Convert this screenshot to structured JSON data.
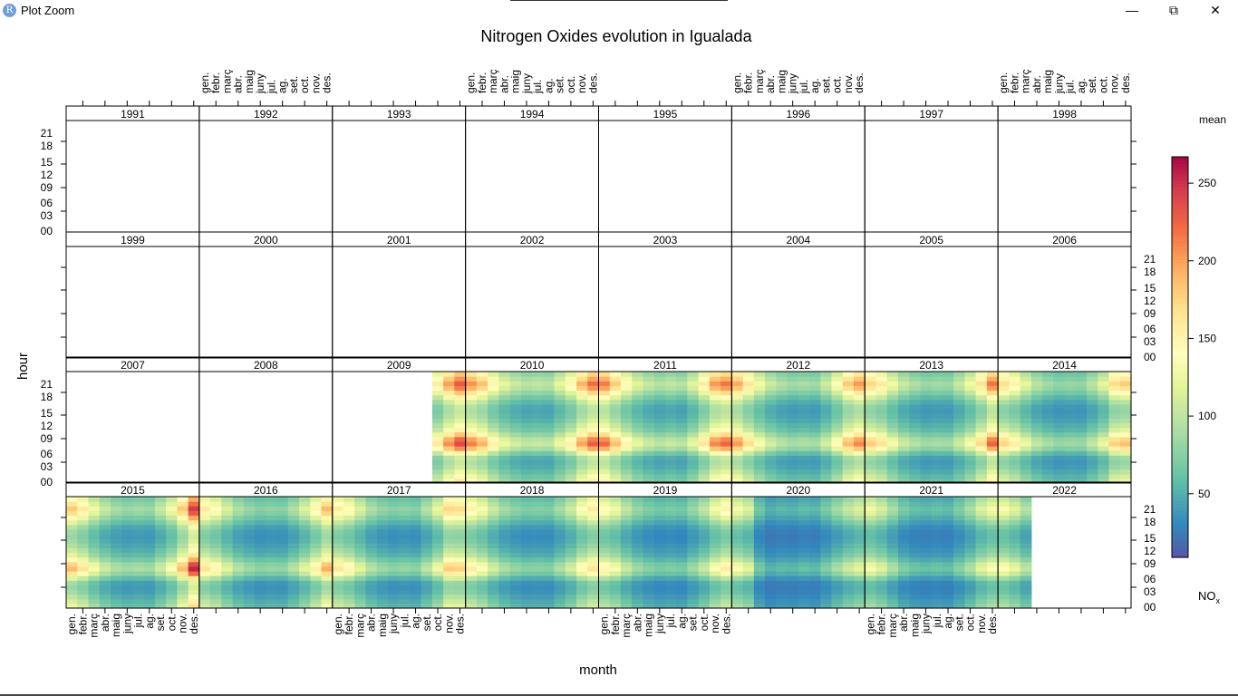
{
  "window": {
    "title": "Plot Zoom",
    "app_icon_letter": "R",
    "minimize": "—",
    "restore": "⧉",
    "close": "✕"
  },
  "chart_data": {
    "type": "heatmap",
    "title": "Nitrogen Oxides evolution in Igualada",
    "xlabel": "month",
    "ylabel": "hour",
    "legend": {
      "title": "mean",
      "label": "NO",
      "label_sub": "x",
      "ticks": [
        50,
        100,
        150,
        200,
        250
      ],
      "range": [
        9,
        267
      ],
      "placement": "right"
    },
    "months": [
      "gen.",
      "febr.",
      "març",
      "abr.",
      "maig",
      "juny",
      "jul.",
      "ag.",
      "set.",
      "oct.",
      "nov.",
      "des."
    ],
    "hour_ticks": [
      "00",
      "03",
      "06",
      "09",
      "12",
      "15",
      "18",
      "21"
    ],
    "years": [
      1991,
      1992,
      1993,
      1994,
      1995,
      1996,
      1997,
      1998,
      1999,
      2000,
      2001,
      2002,
      2003,
      2004,
      2005,
      2006,
      2007,
      2008,
      2009,
      2010,
      2011,
      2012,
      2013,
      2014,
      2015,
      2016,
      2017,
      2018,
      2019,
      2020,
      2021,
      2022
    ],
    "hourly_profile": [
      1.0,
      0.9,
      0.8,
      0.7,
      0.66,
      0.7,
      0.95,
      1.3,
      1.5,
      1.4,
      1.15,
      0.95,
      0.85,
      0.75,
      0.68,
      0.65,
      0.68,
      0.78,
      0.95,
      1.15,
      1.35,
      1.45,
      1.3,
      1.15
    ],
    "monthly_mean": {
      "2009": [
        null,
        null,
        null,
        null,
        null,
        null,
        null,
        null,
        null,
        107,
        138,
        159
      ],
      "2010": [
        142,
        128,
        102,
        84,
        74,
        68,
        70,
        68,
        84,
        102,
        132,
        152
      ],
      "2011": [
        148,
        124,
        100,
        82,
        72,
        66,
        70,
        66,
        82,
        108,
        140,
        150
      ],
      "2012": [
        135,
        112,
        90,
        74,
        65,
        60,
        62,
        60,
        74,
        95,
        125,
        140
      ],
      "2013": [
        120,
        110,
        88,
        72,
        64,
        58,
        60,
        59,
        72,
        88,
        114,
        150
      ],
      "2014": [
        116,
        104,
        84,
        68,
        60,
        55,
        57,
        56,
        68,
        84,
        118,
        124
      ],
      "2015": [
        125,
        110,
        88,
        72,
        62,
        58,
        60,
        58,
        72,
        90,
        125,
        170
      ],
      "2016": [
        110,
        98,
        79,
        64,
        57,
        52,
        54,
        53,
        64,
        80,
        102,
        130
      ],
      "2017": [
        108,
        98,
        80,
        64,
        56,
        52,
        54,
        52,
        66,
        85,
        120,
        118
      ],
      "2018": [
        104,
        92,
        74,
        61,
        54,
        50,
        51,
        50,
        61,
        74,
        96,
        110
      ],
      "2019": [
        98,
        88,
        70,
        57,
        50,
        46,
        48,
        46,
        57,
        70,
        90,
        104
      ],
      "2020": [
        90,
        80,
        45,
        35,
        38,
        37,
        40,
        38,
        48,
        60,
        72,
        80
      ],
      "2021": [
        88,
        78,
        62,
        48,
        42,
        40,
        42,
        40,
        50,
        62,
        80,
        90
      ],
      "2022": [
        92,
        82,
        66,
        null,
        null,
        null,
        null,
        null,
        null,
        null,
        null,
        null
      ]
    },
    "color_stops": [
      [
        5,
        "#5E4FA2"
      ],
      [
        30,
        "#3288BD"
      ],
      [
        60,
        "#66C2A5"
      ],
      [
        90,
        "#ABDDA4"
      ],
      [
        120,
        "#E6F598"
      ],
      [
        140,
        "#FFFFBF"
      ],
      [
        170,
        "#FEE08B"
      ],
      [
        195,
        "#FDAE61"
      ],
      [
        220,
        "#F46D43"
      ],
      [
        245,
        "#D53E4F"
      ],
      [
        270,
        "#9E0142"
      ]
    ]
  }
}
